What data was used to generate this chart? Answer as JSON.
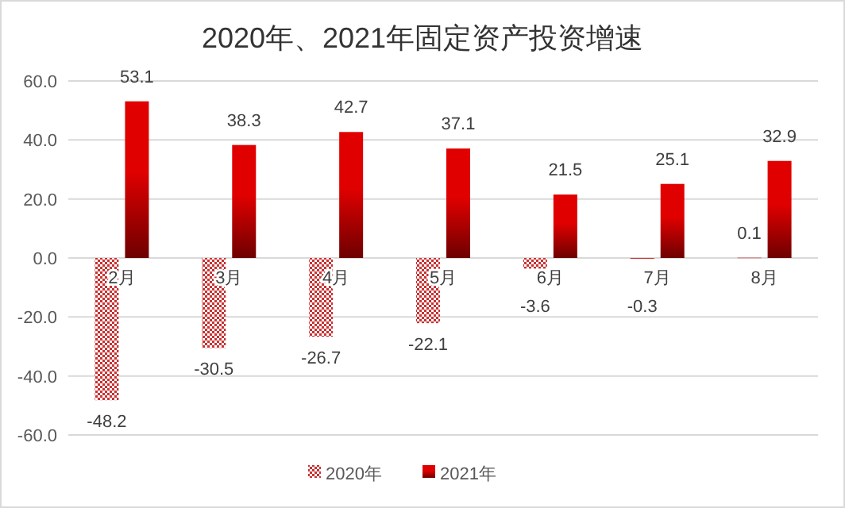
{
  "chart_data": {
    "type": "bar",
    "title": "2020年、2021年固定资产投资增速",
    "categories": [
      "2月",
      "3月",
      "4月",
      "5月",
      "6月",
      "7月",
      "8月"
    ],
    "series": [
      {
        "name": "2020年",
        "color": "#c83232",
        "values": [
          -48.2,
          -30.5,
          -26.7,
          -22.1,
          -3.6,
          -0.3,
          0.1
        ]
      },
      {
        "name": "2021年",
        "color": "#e00000",
        "values": [
          53.1,
          38.3,
          42.7,
          37.1,
          21.5,
          25.1,
          32.9
        ]
      }
    ],
    "ylim": [
      -60,
      60
    ],
    "yticks": [
      {
        "value": -60,
        "label": "-60.0"
      },
      {
        "value": -40,
        "label": "-40.0"
      },
      {
        "value": -20,
        "label": "-20.0"
      },
      {
        "value": 0,
        "label": "0.0"
      },
      {
        "value": 20,
        "label": "20.0"
      },
      {
        "value": 40,
        "label": "40.0"
      },
      {
        "value": 60,
        "label": "60.0"
      }
    ],
    "grid": "y",
    "legend": "bottom",
    "data_labels": true
  }
}
